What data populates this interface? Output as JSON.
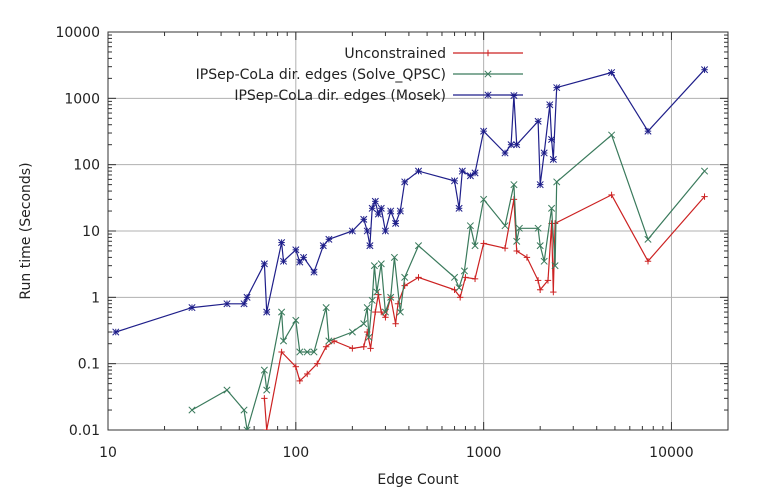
{
  "chart_data": {
    "type": "line",
    "xscale": "log",
    "yscale": "log",
    "xlim": [
      10,
      20000
    ],
    "ylim": [
      0.01,
      10000
    ],
    "xlabel": "Edge Count",
    "ylabel": "Run time (Seconds)",
    "grid": true,
    "legend_position": "top-right",
    "x_ticks": [
      10,
      100,
      1000,
      10000
    ],
    "x_tick_labels": [
      "10",
      "100",
      "1000",
      "10000"
    ],
    "y_ticks": [
      0.01,
      0.1,
      1,
      10,
      100,
      1000,
      10000
    ],
    "y_tick_labels": [
      "0.01",
      "0.1",
      "1",
      "10",
      "100",
      "1000",
      "10000"
    ],
    "series": [
      {
        "name": "Unconstrained",
        "color": "#cc2222",
        "marker": "plus",
        "points": [
          [
            68,
            0.03
          ],
          [
            70,
            0.01
          ],
          [
            84,
            0.15
          ],
          [
            100,
            0.09
          ],
          [
            105,
            0.055
          ],
          [
            115,
            0.07
          ],
          [
            130,
            0.1
          ],
          [
            145,
            0.18
          ],
          [
            160,
            0.22
          ],
          [
            200,
            0.17
          ],
          [
            230,
            0.18
          ],
          [
            240,
            0.3
          ],
          [
            250,
            0.17
          ],
          [
            265,
            0.6
          ],
          [
            275,
            1.1
          ],
          [
            285,
            0.6
          ],
          [
            300,
            0.5
          ],
          [
            320,
            1.0
          ],
          [
            340,
            0.4
          ],
          [
            350,
            0.8
          ],
          [
            380,
            1.5
          ],
          [
            450,
            2.0
          ],
          [
            700,
            1.3
          ],
          [
            750,
            1.0
          ],
          [
            800,
            2.0
          ],
          [
            900,
            1.9
          ],
          [
            1000,
            6.5
          ],
          [
            1300,
            5.5
          ],
          [
            1450,
            30
          ],
          [
            1500,
            5.0
          ],
          [
            1700,
            4.0
          ],
          [
            1950,
            1.8
          ],
          [
            2000,
            1.3
          ],
          [
            2200,
            1.8
          ],
          [
            2300,
            13
          ],
          [
            2350,
            1.2
          ],
          [
            2400,
            13
          ],
          [
            4800,
            35
          ],
          [
            7500,
            3.5
          ],
          [
            15000,
            33
          ]
        ]
      },
      {
        "name": "IPSep-CoLa dir. edges (Solve_QPSC)",
        "color": "#3a7a5c",
        "marker": "x",
        "points": [
          [
            28,
            0.02
          ],
          [
            43,
            0.04
          ],
          [
            53,
            0.02
          ],
          [
            55,
            0.01
          ],
          [
            68,
            0.08
          ],
          [
            70,
            0.04
          ],
          [
            84,
            0.6
          ],
          [
            86,
            0.22
          ],
          [
            100,
            0.45
          ],
          [
            105,
            0.15
          ],
          [
            115,
            0.15
          ],
          [
            125,
            0.15
          ],
          [
            145,
            0.7
          ],
          [
            150,
            0.22
          ],
          [
            200,
            0.3
          ],
          [
            230,
            0.4
          ],
          [
            240,
            0.7
          ],
          [
            245,
            0.25
          ],
          [
            255,
            0.9
          ],
          [
            262,
            3.0
          ],
          [
            270,
            1.2
          ],
          [
            285,
            3.2
          ],
          [
            300,
            0.6
          ],
          [
            320,
            1.0
          ],
          [
            335,
            4.0
          ],
          [
            360,
            0.6
          ],
          [
            380,
            2.0
          ],
          [
            450,
            6.0
          ],
          [
            700,
            2.0
          ],
          [
            740,
            1.4
          ],
          [
            790,
            2.5
          ],
          [
            850,
            12
          ],
          [
            900,
            6.0
          ],
          [
            1000,
            30
          ],
          [
            1300,
            12
          ],
          [
            1450,
            50
          ],
          [
            1500,
            7.0
          ],
          [
            1550,
            11
          ],
          [
            1950,
            11
          ],
          [
            2000,
            6.0
          ],
          [
            2100,
            3.5
          ],
          [
            2300,
            22
          ],
          [
            2400,
            3.0
          ],
          [
            2450,
            55
          ],
          [
            4800,
            280
          ],
          [
            7500,
            7.5
          ],
          [
            15000,
            80
          ]
        ]
      },
      {
        "name": "IPSep-CoLa dir. edges (Mosek)",
        "color": "#1f1f8a",
        "marker": "star",
        "points": [
          [
            11,
            0.3
          ],
          [
            28,
            0.7
          ],
          [
            43,
            0.8
          ],
          [
            53,
            0.8
          ],
          [
            55,
            1.0
          ],
          [
            68,
            3.2
          ],
          [
            70,
            0.6
          ],
          [
            84,
            6.7
          ],
          [
            86,
            3.5
          ],
          [
            100,
            5.2
          ],
          [
            105,
            3.4
          ],
          [
            110,
            4.0
          ],
          [
            125,
            2.4
          ],
          [
            140,
            6.0
          ],
          [
            150,
            7.5
          ],
          [
            200,
            10
          ],
          [
            230,
            15
          ],
          [
            240,
            10
          ],
          [
            248,
            6.0
          ],
          [
            255,
            22
          ],
          [
            265,
            28
          ],
          [
            275,
            18
          ],
          [
            285,
            22
          ],
          [
            300,
            10
          ],
          [
            320,
            20
          ],
          [
            340,
            13
          ],
          [
            360,
            20
          ],
          [
            380,
            55
          ],
          [
            450,
            80
          ],
          [
            700,
            57
          ],
          [
            740,
            22
          ],
          [
            770,
            80
          ],
          [
            850,
            68
          ],
          [
            900,
            75
          ],
          [
            1000,
            320
          ],
          [
            1300,
            150
          ],
          [
            1400,
            200
          ],
          [
            1450,
            1100
          ],
          [
            1500,
            200
          ],
          [
            1950,
            450
          ],
          [
            2000,
            50
          ],
          [
            2100,
            150
          ],
          [
            2250,
            800
          ],
          [
            2300,
            240
          ],
          [
            2350,
            120
          ],
          [
            2450,
            1450
          ],
          [
            4800,
            2450
          ],
          [
            7500,
            320
          ],
          [
            15000,
            2700
          ]
        ]
      }
    ]
  }
}
